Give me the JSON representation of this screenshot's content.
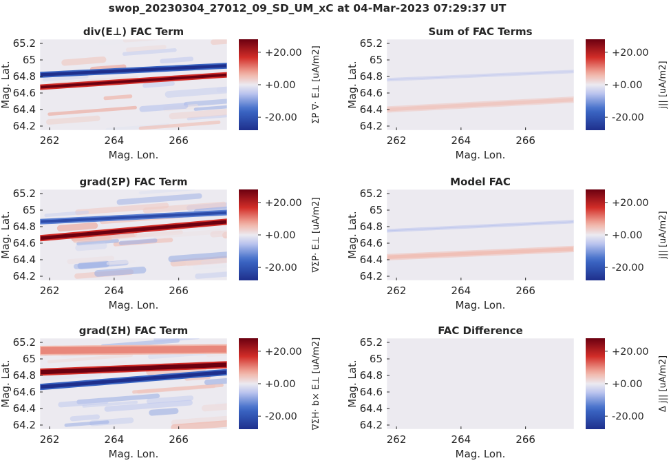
{
  "figure": {
    "title": "swop_20230304_27012_09_SD_UM_xC at 04-Mar-2023 07:29:37 UT"
  },
  "colors": {
    "map_low": "#1e2f8c",
    "map_mid": "#eceaf0",
    "map_high": "#6b0010"
  },
  "chart_data": [
    {
      "type": "heatmap",
      "title": "div(E⊥) FAC Term",
      "xlabel": "Mag. Lon.",
      "ylabel": "Mag. Lat.",
      "xlim": [
        261.7,
        267.5
      ],
      "ylim": [
        64.15,
        65.25
      ],
      "xticks": [
        262,
        264,
        266
      ],
      "yticks": [
        64.2,
        64.4,
        64.6,
        64.8,
        65,
        65.2
      ],
      "clim": [
        -28,
        28
      ],
      "colorbar_ticks": [
        "+20.00",
        "+0.00",
        "-20.00"
      ],
      "colorbar_tick_values": [
        20,
        0,
        -20
      ],
      "colorbar_label": "ΣP ∇· E⊥ [uA/m2]",
      "bands": [
        {
          "value": -28,
          "lat_start": 64.82,
          "lat_end": 64.93,
          "width": 0.055
        },
        {
          "value": 28,
          "lat_start": 64.67,
          "lat_end": 64.82,
          "width": 0.05
        }
      ],
      "texture": 4
    },
    {
      "type": "heatmap",
      "title": "Sum of FAC Terms",
      "xlabel": "Mag. Lon.",
      "ylabel": "Mag. Lat.",
      "xlim": [
        261.7,
        267.5
      ],
      "ylim": [
        64.15,
        65.25
      ],
      "xticks": [
        262,
        264,
        266
      ],
      "yticks": [
        64.2,
        64.4,
        64.6,
        64.8,
        65,
        65.2
      ],
      "clim": [
        -28,
        28
      ],
      "colorbar_ticks": [
        "+20.00",
        "+0.00",
        "-20.00"
      ],
      "colorbar_tick_values": [
        20,
        0,
        -20
      ],
      "colorbar_label": "j|| [uA/m2]",
      "bands": [
        {
          "value": -4,
          "lat_start": 64.76,
          "lat_end": 64.86,
          "width": 0.025
        },
        {
          "value": 4,
          "lat_start": 64.4,
          "lat_end": 64.52,
          "width": 0.06
        }
      ],
      "texture": 0
    },
    {
      "type": "heatmap",
      "title": "grad(ΣP) FAC Term",
      "xlabel": "Mag. Lon.",
      "ylabel": "Mag. Lat.",
      "xlim": [
        261.7,
        267.5
      ],
      "ylim": [
        64.15,
        65.25
      ],
      "xticks": [
        262,
        264,
        266
      ],
      "yticks": [
        64.2,
        64.4,
        64.6,
        64.8,
        65,
        65.2
      ],
      "clim": [
        -28,
        28
      ],
      "colorbar_ticks": [
        "+20.00",
        "+0.00",
        "-20.00"
      ],
      "colorbar_tick_values": [
        20,
        0,
        -20
      ],
      "colorbar_label": "∇ΣP· E⊥ [uA/m2]",
      "bands": [
        {
          "value": -22,
          "lat_start": 64.86,
          "lat_end": 64.97,
          "width": 0.05
        },
        {
          "value": 28,
          "lat_start": 64.66,
          "lat_end": 64.86,
          "width": 0.06
        }
      ],
      "texture": 6
    },
    {
      "type": "heatmap",
      "title": "Model FAC",
      "xlabel": "Mag. Lon.",
      "ylabel": "Mag. Lat.",
      "xlim": [
        261.7,
        267.5
      ],
      "ylim": [
        64.15,
        65.25
      ],
      "xticks": [
        262,
        264,
        266
      ],
      "yticks": [
        64.2,
        64.4,
        64.6,
        64.8,
        65,
        65.2
      ],
      "clim": [
        -28,
        28
      ],
      "colorbar_ticks": [
        "+20.00",
        "+0.00",
        "-20.00"
      ],
      "colorbar_tick_values": [
        20,
        0,
        -20
      ],
      "colorbar_label": "j|| [uA/m2]",
      "bands": [
        {
          "value": -5,
          "lat_start": 64.75,
          "lat_end": 64.86,
          "width": 0.025
        },
        {
          "value": 5,
          "lat_start": 64.43,
          "lat_end": 64.53,
          "width": 0.06
        }
      ],
      "texture": 0
    },
    {
      "type": "heatmap",
      "title": "grad(ΣH) FAC Term",
      "xlabel": "Mag. Lon.",
      "ylabel": "Mag. Lat.",
      "xlim": [
        261.7,
        267.5
      ],
      "ylim": [
        64.15,
        65.25
      ],
      "xticks": [
        262,
        264,
        266
      ],
      "yticks": [
        64.2,
        64.4,
        64.6,
        64.8,
        65,
        65.2
      ],
      "clim": [
        -28,
        28
      ],
      "colorbar_ticks": [
        "+20.00",
        "+0.00",
        "-20.00"
      ],
      "colorbar_tick_values": [
        20,
        0,
        -20
      ],
      "colorbar_label": "∇ΣH· b× E⊥ [uA/m2]",
      "bands": [
        {
          "value": 28,
          "lat_start": 64.84,
          "lat_end": 64.93,
          "width": 0.07
        },
        {
          "value": -28,
          "lat_start": 64.66,
          "lat_end": 64.84,
          "width": 0.06
        },
        {
          "value": 10,
          "lat_start": 65.1,
          "lat_end": 65.12,
          "width": 0.1
        }
      ],
      "texture": 5
    },
    {
      "type": "heatmap",
      "title": "FAC Difference",
      "xlabel": "Mag. Lon.",
      "ylabel": "Mag. Lat.",
      "xlim": [
        261.7,
        267.5
      ],
      "ylim": [
        64.15,
        65.25
      ],
      "xticks": [
        262,
        264,
        266
      ],
      "yticks": [
        64.2,
        64.4,
        64.6,
        64.8,
        65,
        65.2
      ],
      "clim": [
        -28,
        28
      ],
      "colorbar_ticks": [
        "+20.00",
        "+0.00",
        "-20.00"
      ],
      "colorbar_tick_values": [
        20,
        0,
        -20
      ],
      "colorbar_label": "Δ j|| [uA/m2]",
      "bands": [],
      "texture": 0
    }
  ]
}
